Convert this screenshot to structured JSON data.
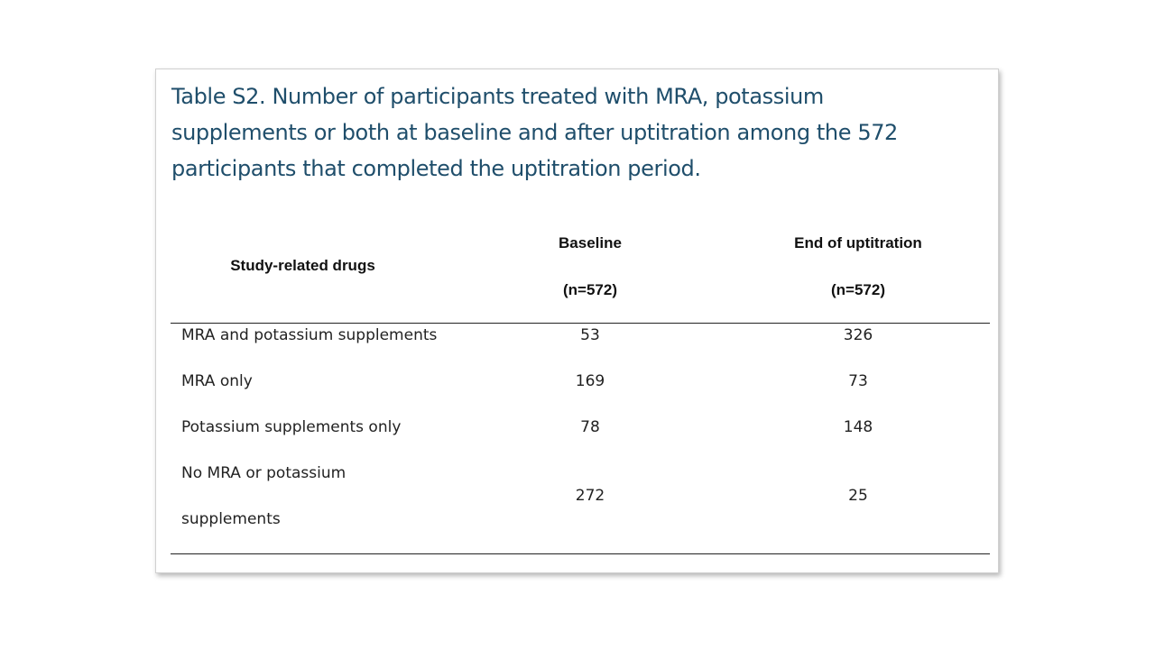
{
  "caption": "Table S2. Number of participants treated with MRA, potassium supplements or both at baseline and after uptitration among the 572 participants that completed the uptitration period.",
  "table": {
    "headers": {
      "drugs": "Study-related drugs",
      "baseline_label": "Baseline",
      "baseline_n": "(n=572)",
      "end_label": "End of uptitration",
      "end_n": "(n=572)"
    },
    "rows": [
      {
        "drug": "MRA and potassium supplements",
        "baseline": "53",
        "end": "326"
      },
      {
        "drug": "MRA only",
        "baseline": "169",
        "end": "73"
      },
      {
        "drug": "Potassium supplements only",
        "baseline": "78",
        "end": "148"
      },
      {
        "drug_line1": "No MRA or potassium",
        "drug_line2": "supplements",
        "baseline": "272",
        "end": "25"
      }
    ]
  }
}
